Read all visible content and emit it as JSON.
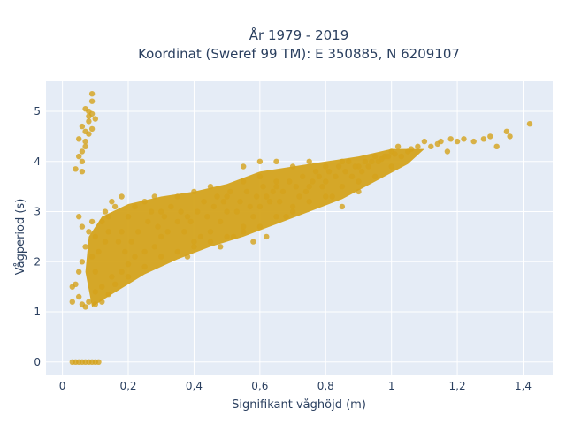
{
  "chart_data": {
    "type": "scatter",
    "title_line1": "År 1979 - 2019",
    "title_line2": "Koordinat (Sweref 99 TM): E 350885, N 6209107",
    "xlabel": "Signifikant våghöjd (m)",
    "ylabel": "Vågperiod (s)",
    "xlim": [
      -0.05,
      1.49
    ],
    "ylim": [
      -0.25,
      5.6
    ],
    "x_ticks": [
      0,
      0.2,
      0.4,
      0.6,
      0.8,
      1,
      1.2,
      1.4
    ],
    "x_tick_labels": [
      "0",
      "0,2",
      "0,4",
      "0,6",
      "0,8",
      "1",
      "1,2",
      "1,4"
    ],
    "y_ticks": [
      0,
      1,
      2,
      3,
      4,
      5
    ],
    "y_tick_labels": [
      "0",
      "1",
      "2",
      "3",
      "4",
      "5"
    ],
    "grid": true,
    "background": "#e5ecf6",
    "marker_color": "#d4a31c",
    "series": [
      {
        "values_note": "",
        "points": [
          [
            0.03,
            0
          ],
          [
            0.04,
            0
          ],
          [
            0.05,
            0
          ],
          [
            0.06,
            0
          ],
          [
            0.07,
            0
          ],
          [
            0.08,
            0
          ],
          [
            0.09,
            0
          ],
          [
            0.1,
            0
          ],
          [
            0.11,
            0
          ],
          [
            0.06,
            3.8
          ],
          [
            0.06,
            4.0
          ],
          [
            0.06,
            4.2
          ],
          [
            0.07,
            4.4
          ],
          [
            0.07,
            4.6
          ],
          [
            0.08,
            4.8
          ],
          [
            0.08,
            5.0
          ],
          [
            0.09,
            5.2
          ],
          [
            0.09,
            5.35
          ],
          [
            0.05,
            4.1
          ],
          [
            0.07,
            4.3
          ],
          [
            0.08,
            4.55
          ],
          [
            0.04,
            3.85
          ],
          [
            0.06,
            4.7
          ],
          [
            0.08,
            4.9
          ],
          [
            0.09,
            4.65
          ],
          [
            0.1,
            4.85
          ],
          [
            0.07,
            5.05
          ],
          [
            0.05,
            4.45
          ],
          [
            0.09,
            4.95
          ],
          [
            0.03,
            1.2
          ],
          [
            0.03,
            1.5
          ],
          [
            0.04,
            1.55
          ],
          [
            0.05,
            1.3
          ],
          [
            0.06,
            1.15
          ],
          [
            0.07,
            1.1
          ],
          [
            0.08,
            1.2
          ],
          [
            0.1,
            1.15
          ],
          [
            0.12,
            1.2
          ],
          [
            0.14,
            1.35
          ],
          [
            0.05,
            1.8
          ],
          [
            0.06,
            2.0
          ],
          [
            0.07,
            2.3
          ],
          [
            0.08,
            2.6
          ],
          [
            0.09,
            2.8
          ],
          [
            0.06,
            2.7
          ],
          [
            0.05,
            2.9
          ],
          [
            0.1,
            2.5
          ],
          [
            0.12,
            2.8
          ],
          [
            0.14,
            2.9
          ],
          [
            0.16,
            3.1
          ],
          [
            0.15,
            1.7
          ],
          [
            0.18,
            1.8
          ],
          [
            0.2,
            1.95
          ],
          [
            0.22,
            2.1
          ],
          [
            0.25,
            2.2
          ],
          [
            0.28,
            2.3
          ],
          [
            0.3,
            2.5
          ],
          [
            0.18,
            2.6
          ],
          [
            0.2,
            2.9
          ],
          [
            0.22,
            3.1
          ],
          [
            0.25,
            3.2
          ],
          [
            0.28,
            3.3
          ],
          [
            0.3,
            3.0
          ],
          [
            0.32,
            2.6
          ],
          [
            0.35,
            2.8
          ],
          [
            0.38,
            2.9
          ],
          [
            0.4,
            2.3
          ],
          [
            0.42,
            2.5
          ],
          [
            0.45,
            2.6
          ],
          [
            0.48,
            2.8
          ],
          [
            0.5,
            3.0
          ],
          [
            0.35,
            3.3
          ],
          [
            0.4,
            3.4
          ],
          [
            0.45,
            3.5
          ],
          [
            0.5,
            3.3
          ],
          [
            0.52,
            2.5
          ],
          [
            0.55,
            2.7
          ],
          [
            0.58,
            2.9
          ],
          [
            0.6,
            3.1
          ],
          [
            0.62,
            3.3
          ],
          [
            0.65,
            3.5
          ],
          [
            0.55,
            3.6
          ],
          [
            0.6,
            3.7
          ],
          [
            0.65,
            3.6
          ],
          [
            0.68,
            2.9
          ],
          [
            0.7,
            3.1
          ],
          [
            0.72,
            3.3
          ],
          [
            0.75,
            3.5
          ],
          [
            0.78,
            3.7
          ],
          [
            0.8,
            3.9
          ],
          [
            0.7,
            3.9
          ],
          [
            0.75,
            4.0
          ],
          [
            0.8,
            3.6
          ],
          [
            0.82,
            3.3
          ],
          [
            0.85,
            3.5
          ],
          [
            0.88,
            3.7
          ],
          [
            0.9,
            3.9
          ],
          [
            0.92,
            4.0
          ],
          [
            0.95,
            4.1
          ],
          [
            0.85,
            4.0
          ],
          [
            0.9,
            3.6
          ],
          [
            0.98,
            4.1
          ],
          [
            1.0,
            4.2
          ],
          [
            1.02,
            4.3
          ],
          [
            1.05,
            4.2
          ],
          [
            1.08,
            4.3
          ],
          [
            1.1,
            4.4
          ],
          [
            1.12,
            4.3
          ],
          [
            1.15,
            4.4
          ],
          [
            1.18,
            4.45
          ],
          [
            1.2,
            4.4
          ],
          [
            1.25,
            4.4
          ],
          [
            1.28,
            4.45
          ],
          [
            1.3,
            4.5
          ],
          [
            1.32,
            4.3
          ],
          [
            1.35,
            4.6
          ],
          [
            1.36,
            4.5
          ],
          [
            1.42,
            4.75
          ],
          [
            0.25,
            1.9
          ],
          [
            0.3,
            2.1
          ],
          [
            0.35,
            2.2
          ],
          [
            0.4,
            2.4
          ],
          [
            0.45,
            2.4
          ],
          [
            0.5,
            2.5
          ],
          [
            0.55,
            2.6
          ],
          [
            0.6,
            2.7
          ],
          [
            0.65,
            2.9
          ],
          [
            0.7,
            3.0
          ],
          [
            0.75,
            3.2
          ],
          [
            0.8,
            3.3
          ],
          [
            0.85,
            3.1
          ],
          [
            0.9,
            3.4
          ],
          [
            0.95,
            3.7
          ],
          [
            1.0,
            3.9
          ],
          [
            0.6,
            4.0
          ],
          [
            0.55,
            3.9
          ],
          [
            0.65,
            4.0
          ],
          [
            0.58,
            2.4
          ],
          [
            0.62,
            2.5
          ],
          [
            0.48,
            2.3
          ],
          [
            0.38,
            2.1
          ],
          [
            0.2,
            1.7
          ],
          [
            0.16,
            1.55
          ],
          [
            0.12,
            1.5
          ],
          [
            0.1,
            1.4
          ],
          [
            0.18,
            3.3
          ],
          [
            0.15,
            3.2
          ],
          [
            0.13,
            3.0
          ],
          [
            0.09,
            2.1
          ],
          [
            0.1,
            1.8
          ],
          [
            0.11,
            2.2
          ],
          [
            0.13,
            2.4
          ],
          [
            0.14,
            2.6
          ],
          [
            0.17,
            2.4
          ],
          [
            0.19,
            2.2
          ],
          [
            0.21,
            2.4
          ],
          [
            0.23,
            2.6
          ],
          [
            0.26,
            2.8
          ],
          [
            0.27,
            3.0
          ],
          [
            0.29,
            2.7
          ],
          [
            0.31,
            2.9
          ],
          [
            0.33,
            3.1
          ],
          [
            0.36,
            3.0
          ],
          [
            0.37,
            2.6
          ],
          [
            0.39,
            2.8
          ],
          [
            0.41,
            3.0
          ],
          [
            0.43,
            3.2
          ],
          [
            0.44,
            2.9
          ],
          [
            0.46,
            3.1
          ],
          [
            0.47,
            3.3
          ],
          [
            0.49,
            3.2
          ],
          [
            0.51,
            3.4
          ],
          [
            0.53,
            3.0
          ],
          [
            0.54,
            3.2
          ],
          [
            0.56,
            3.4
          ],
          [
            0.57,
            3.1
          ],
          [
            0.59,
            3.3
          ],
          [
            0.61,
            3.5
          ],
          [
            0.63,
            3.2
          ],
          [
            0.64,
            3.4
          ],
          [
            0.66,
            3.2
          ],
          [
            0.67,
            3.4
          ],
          [
            0.69,
            3.6
          ],
          [
            0.71,
            3.5
          ],
          [
            0.73,
            3.7
          ],
          [
            0.74,
            3.4
          ],
          [
            0.76,
            3.6
          ],
          [
            0.77,
            3.8
          ],
          [
            0.79,
            3.5
          ],
          [
            0.81,
            3.8
          ],
          [
            0.83,
            3.7
          ],
          [
            0.84,
            3.9
          ],
          [
            0.86,
            3.8
          ],
          [
            0.87,
            4.0
          ],
          [
            0.89,
            3.9
          ],
          [
            0.91,
            3.8
          ],
          [
            0.93,
            3.9
          ],
          [
            0.94,
            4.0
          ],
          [
            0.96,
            4.0
          ],
          [
            0.97,
            4.05
          ],
          [
            0.99,
            4.1
          ],
          [
            1.01,
            4.15
          ],
          [
            1.03,
            4.1
          ],
          [
            1.06,
            4.25
          ],
          [
            1.14,
            4.35
          ],
          [
            1.22,
            4.45
          ],
          [
            1.17,
            4.2
          ]
        ]
      }
    ]
  }
}
